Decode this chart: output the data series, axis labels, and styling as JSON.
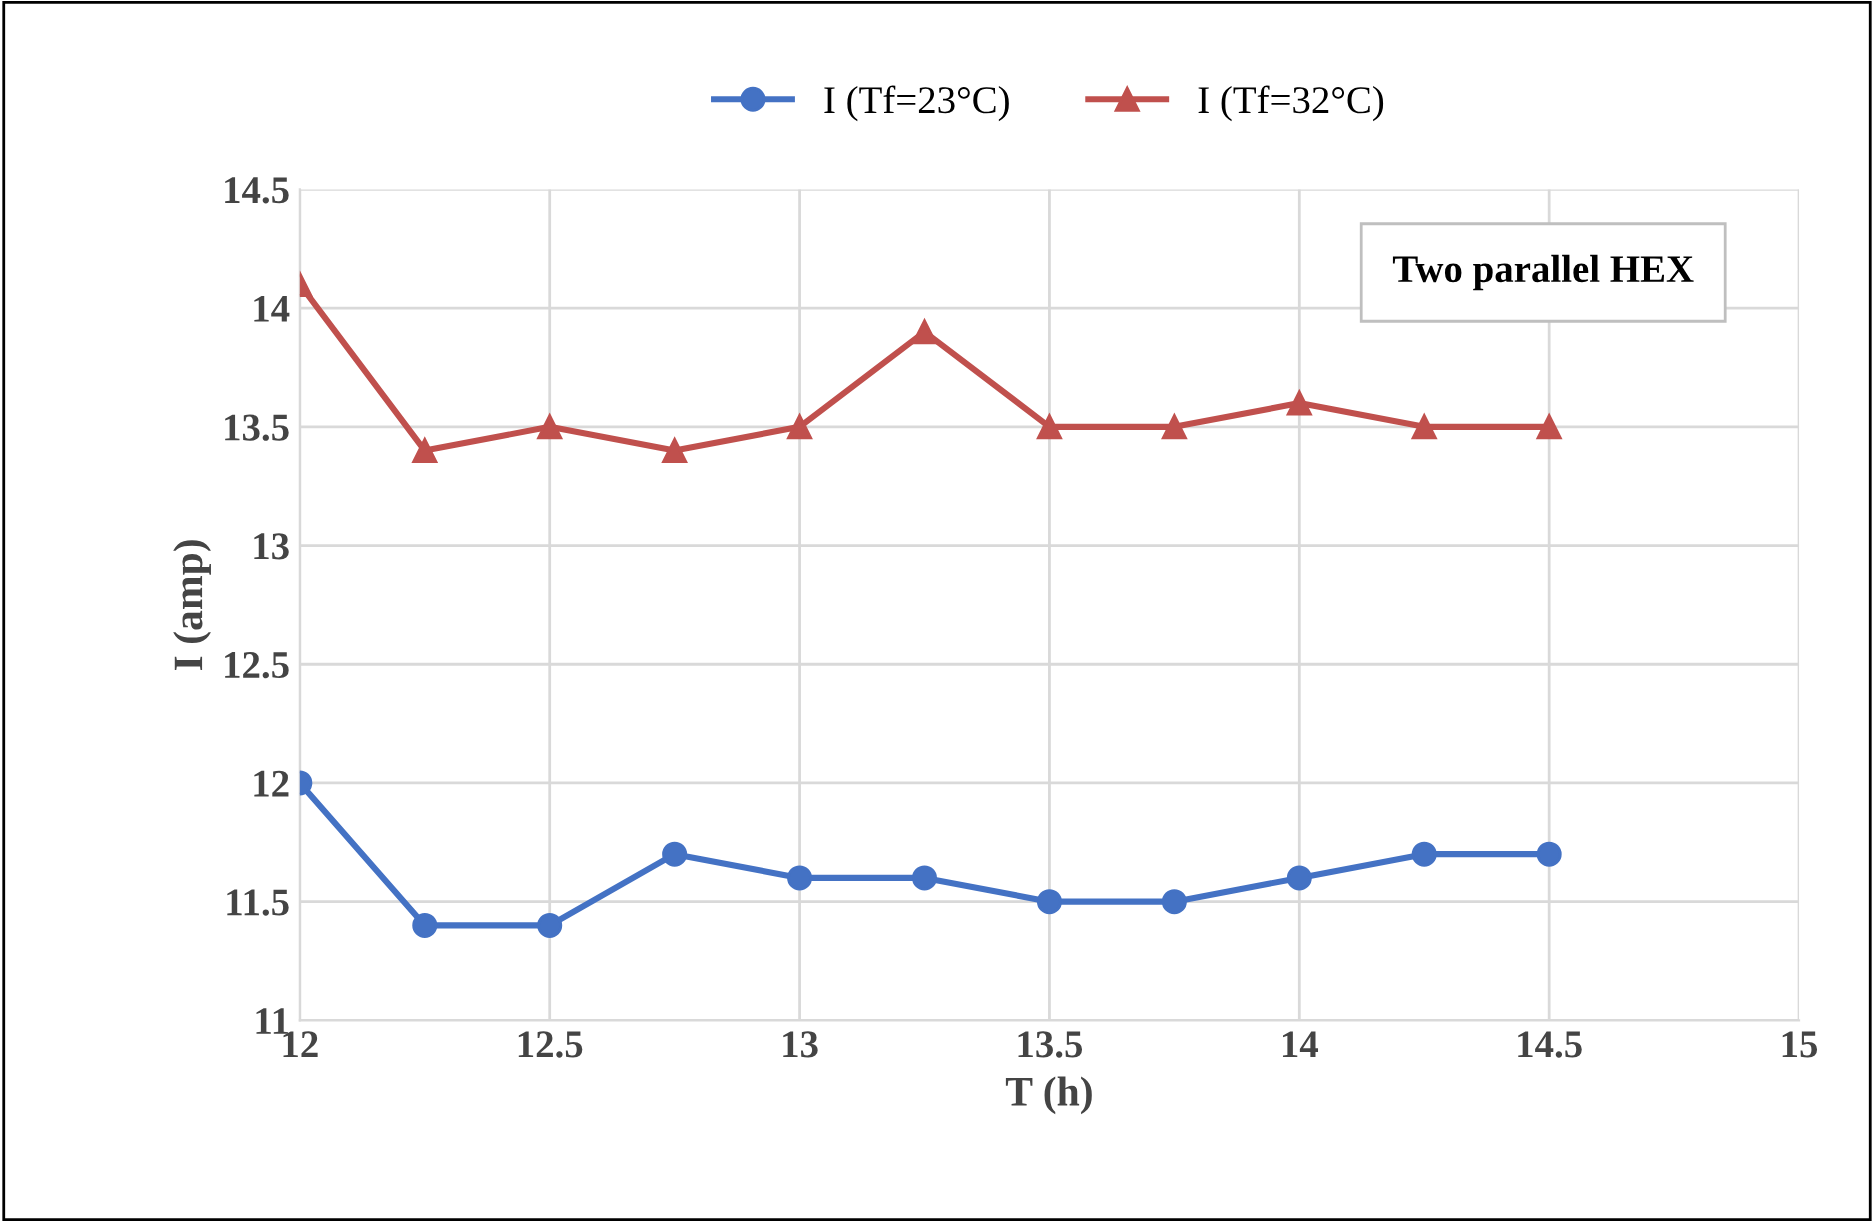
{
  "chart_data": {
    "type": "line",
    "xlabel": "T (h)",
    "ylabel": "I (amp)",
    "x": [
      12,
      12.25,
      12.5,
      12.75,
      13,
      13.25,
      13.5,
      13.75,
      14,
      14.25,
      14.5
    ],
    "series": [
      {
        "name": "I (Tf=23°C)",
        "color": "#4472c4",
        "marker": "circle",
        "values": [
          12,
          11.4,
          11.4,
          11.7,
          11.6,
          11.6,
          11.5,
          11.5,
          11.6,
          11.7,
          11.7
        ]
      },
      {
        "name": "I (Tf=32°C)",
        "color": "#c0504d",
        "marker": "triangle",
        "values": [
          14.1,
          13.4,
          13.5,
          13.4,
          13.5,
          13.9,
          13.5,
          13.5,
          13.6,
          13.5,
          13.5
        ]
      }
    ],
    "xlim": [
      12,
      15
    ],
    "xticks": [
      12,
      12.5,
      13,
      13.5,
      14,
      14.5,
      15
    ],
    "ylim": [
      11,
      14.5
    ],
    "yticks": [
      11,
      11.5,
      12,
      12.5,
      13,
      13.5,
      14,
      14.5
    ],
    "grid": true,
    "legend": "top",
    "line_style": "solid",
    "annotations": [
      "Two parallel HEX"
    ]
  }
}
